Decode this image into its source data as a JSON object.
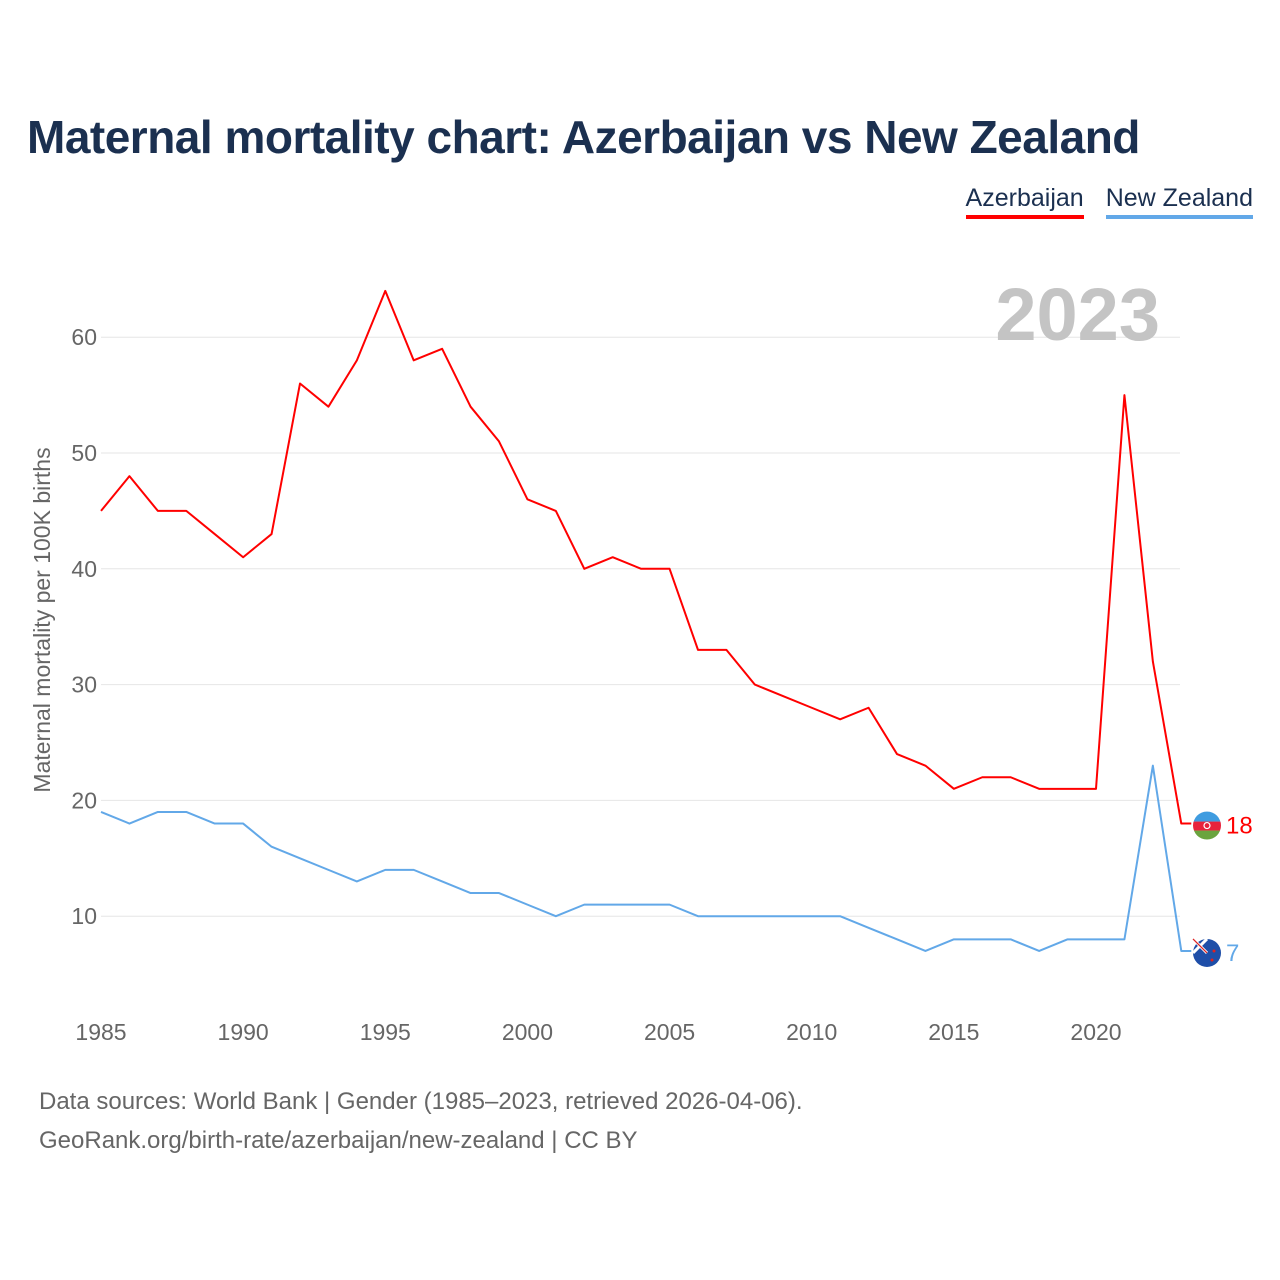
{
  "title": "Maternal mortality chart: Azerbaijan vs New Zealand",
  "legend": [
    "Azerbaijan",
    "New Zealand"
  ],
  "year_label": "2023",
  "footer": {
    "line1": "Data sources: World Bank | Gender (1985–2023, retrieved 2026-04-06).",
    "line2": "GeoRank.org/birth-rate/azerbaijan/new-zealand | CC BY"
  },
  "chart_data": {
    "type": "line",
    "title": "Maternal mortality chart: Azerbaijan vs New Zealand",
    "xlabel": "",
    "ylabel": "Maternal mortality per 100K births",
    "xlim": [
      1985,
      2023
    ],
    "ylim": [
      0,
      65
    ],
    "x_ticks": [
      1985,
      1990,
      1995,
      2000,
      2005,
      2010,
      2015,
      2020
    ],
    "y_ticks": [
      10,
      20,
      30,
      40,
      50,
      60
    ],
    "grid": true,
    "legend_position": "top-right",
    "x": [
      1985,
      1986,
      1987,
      1988,
      1989,
      1990,
      1991,
      1992,
      1993,
      1994,
      1995,
      1996,
      1997,
      1998,
      1999,
      2000,
      2001,
      2002,
      2003,
      2004,
      2005,
      2006,
      2007,
      2008,
      2009,
      2010,
      2011,
      2012,
      2013,
      2014,
      2015,
      2016,
      2017,
      2018,
      2019,
      2020,
      2021,
      2022,
      2023
    ],
    "series": [
      {
        "name": "Azerbaijan",
        "color": "#ff0000",
        "end_label": "18",
        "values": [
          45,
          48,
          45,
          45,
          43,
          41,
          43,
          56,
          54,
          58,
          64,
          58,
          59,
          54,
          51,
          46,
          45,
          40,
          41,
          40,
          40,
          33,
          33,
          30,
          29,
          28,
          27,
          28,
          24,
          23,
          21,
          22,
          22,
          21,
          21,
          21,
          55,
          32,
          18
        ]
      },
      {
        "name": "New Zealand",
        "color": "#62a8e8",
        "end_label": "7",
        "values": [
          19,
          18,
          19,
          19,
          18,
          18,
          16,
          15,
          14,
          13,
          14,
          14,
          13,
          12,
          12,
          11,
          10,
          11,
          11,
          11,
          11,
          10,
          10,
          10,
          10,
          10,
          10,
          9,
          8,
          7,
          8,
          8,
          8,
          7,
          8,
          8,
          8,
          23,
          7
        ]
      }
    ]
  }
}
